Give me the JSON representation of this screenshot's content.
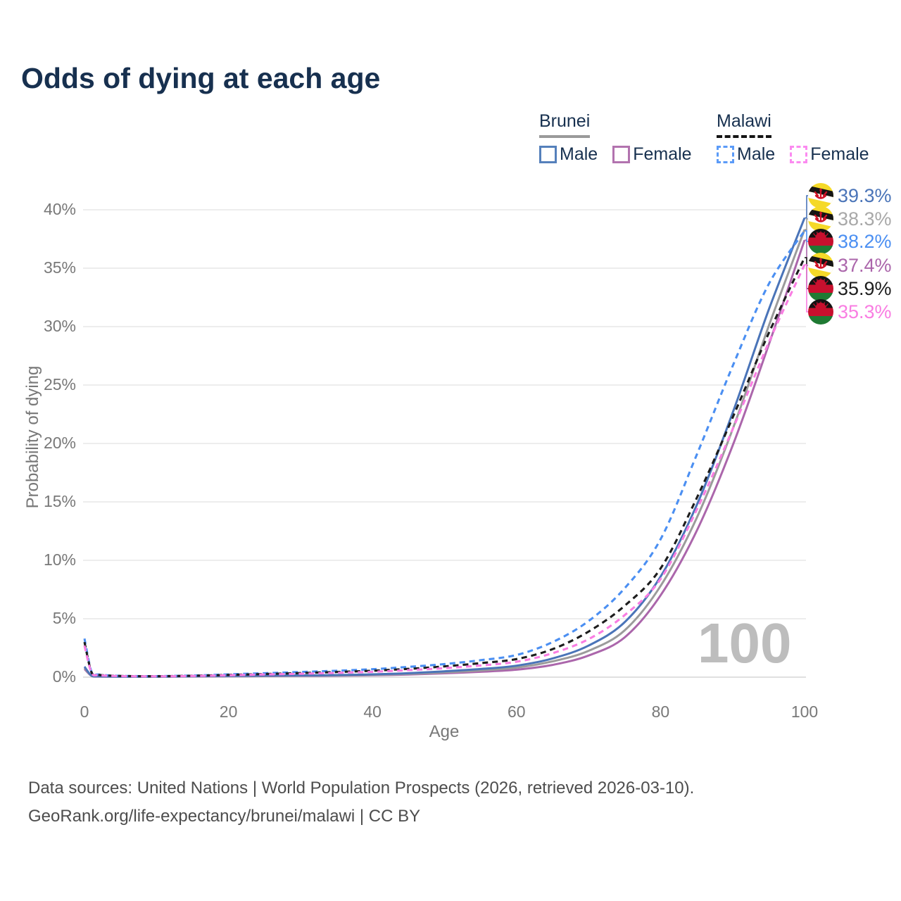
{
  "title": "Odds of dying at each age",
  "watermark": "100",
  "legend": {
    "groups": [
      {
        "name": "Brunei",
        "line_style": "solid",
        "items": [
          {
            "label": "Male",
            "color": "#5580bb",
            "dashed": false
          },
          {
            "label": "Female",
            "color": "#b273af",
            "dashed": false
          }
        ]
      },
      {
        "name": "Malawi",
        "line_style": "dashed",
        "items": [
          {
            "label": "Male",
            "color": "#5b9bf8",
            "dashed": true
          },
          {
            "label": "Female",
            "color": "#fb8af0",
            "dashed": true
          }
        ]
      }
    ]
  },
  "chart_data": {
    "type": "line",
    "title": "Odds of dying at each age",
    "xlabel": "Age",
    "ylabel": "Probability of dying",
    "xlim": [
      0,
      100
    ],
    "ylim": [
      0,
      42
    ],
    "grid": true,
    "legend_position": "top-right",
    "x_ticks": [
      0,
      20,
      40,
      60,
      80,
      100
    ],
    "x_tick_labels": [
      "0",
      "20",
      "40",
      "60",
      "80",
      "100"
    ],
    "y_ticks": [
      0,
      5,
      10,
      15,
      20,
      25,
      30,
      35,
      40
    ],
    "y_tick_labels": [
      "0%",
      "5%",
      "10%",
      "15%",
      "20%",
      "25%",
      "30%",
      "35%",
      "40%"
    ],
    "ages": [
      0,
      1,
      2,
      5,
      10,
      15,
      20,
      25,
      30,
      35,
      40,
      45,
      50,
      55,
      60,
      65,
      70,
      75,
      80,
      85,
      90,
      95,
      100
    ],
    "series": [
      {
        "id": "brunei-female",
        "country": "Brunei",
        "sex": "Female",
        "color": "#ab66ab",
        "dashed": false,
        "end_value": 37.4,
        "end_label": "37.4%",
        "label_color": "#ab66ab",
        "flag": "brunei",
        "label_row": 3,
        "values": [
          0.7,
          0.1,
          0.05,
          0.04,
          0.04,
          0.06,
          0.07,
          0.09,
          0.1,
          0.12,
          0.16,
          0.23,
          0.33,
          0.46,
          0.64,
          1.05,
          1.85,
          3.4,
          7.0,
          12.5,
          19.8,
          28.4,
          37.4
        ]
      },
      {
        "id": "brunei-average",
        "country": "Brunei",
        "sex": "Both",
        "color": "#9b9b9b",
        "dashed": false,
        "end_value": 38.3,
        "end_label": "38.3%",
        "label_color": "#a8a8a8",
        "flag": "brunei",
        "label_row": 1,
        "values": [
          0.8,
          0.11,
          0.06,
          0.04,
          0.04,
          0.07,
          0.09,
          0.11,
          0.13,
          0.15,
          0.2,
          0.28,
          0.41,
          0.57,
          0.82,
          1.35,
          2.25,
          4.0,
          7.8,
          13.6,
          21.2,
          30.0,
          38.3
        ]
      },
      {
        "id": "brunei-male",
        "country": "Brunei",
        "sex": "Male",
        "color": "#4a74b8",
        "dashed": false,
        "end_value": 39.3,
        "end_label": "39.3%",
        "label_color": "#4a74b8",
        "flag": "brunei",
        "label_row": 0,
        "values": [
          0.9,
          0.12,
          0.07,
          0.05,
          0.05,
          0.08,
          0.11,
          0.13,
          0.15,
          0.18,
          0.24,
          0.34,
          0.5,
          0.7,
          0.98,
          1.6,
          2.7,
          4.7,
          8.6,
          14.7,
          22.6,
          31.4,
          39.3
        ]
      },
      {
        "id": "malawi-male",
        "country": "Malawi",
        "sex": "Male",
        "color": "#4b8ff2",
        "dashed": true,
        "end_value": 38.2,
        "end_label": "38.2%",
        "label_color": "#4b8ff2",
        "flag": "malawi",
        "label_row": 2,
        "values": [
          3.3,
          0.42,
          0.22,
          0.11,
          0.09,
          0.14,
          0.24,
          0.34,
          0.44,
          0.55,
          0.68,
          0.88,
          1.12,
          1.45,
          1.9,
          3.0,
          4.8,
          7.6,
          11.8,
          19.0,
          26.6,
          33.6,
          38.2
        ]
      },
      {
        "id": "malawi-average",
        "country": "Malawi",
        "sex": "Both",
        "color": "#1d1d1d",
        "dashed": true,
        "end_value": 35.9,
        "end_label": "35.9%",
        "label_color": "#1d1d1d",
        "flag": "malawi",
        "label_row": 4,
        "values": [
          3.0,
          0.38,
          0.19,
          0.1,
          0.08,
          0.12,
          0.19,
          0.27,
          0.35,
          0.44,
          0.55,
          0.71,
          0.92,
          1.2,
          1.55,
          2.4,
          3.9,
          6.1,
          9.3,
          15.3,
          22.2,
          29.4,
          35.9
        ]
      },
      {
        "id": "malawi-female",
        "country": "Malawi",
        "sex": "Female",
        "color": "#f97de2",
        "dashed": true,
        "end_value": 35.3,
        "end_label": "35.3%",
        "label_color": "#f97de2",
        "flag": "malawi",
        "label_row": 5,
        "values": [
          2.7,
          0.34,
          0.17,
          0.09,
          0.07,
          0.1,
          0.16,
          0.23,
          0.29,
          0.37,
          0.46,
          0.6,
          0.77,
          1.0,
          1.32,
          2.05,
          3.25,
          5.3,
          8.4,
          14.3,
          21.2,
          28.6,
          35.3
        ]
      }
    ],
    "annotations": {
      "age_indicator": "100"
    }
  },
  "footer": {
    "line1": "Data sources: United Nations | World Population Prospects (2026, retrieved 2026-03-10).",
    "line2": "GeoRank.org/life-expectancy/brunei/malawi | CC BY"
  }
}
